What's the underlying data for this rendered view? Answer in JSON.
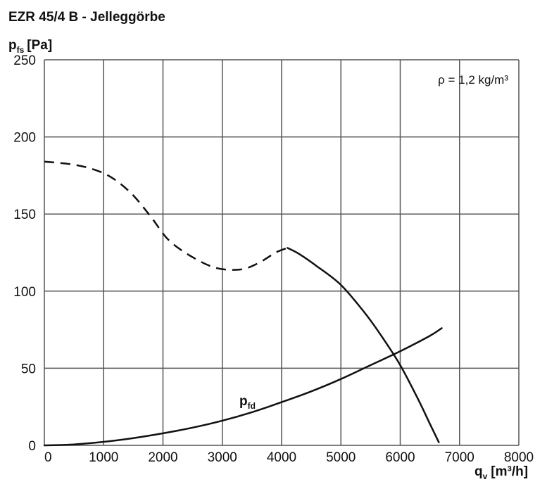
{
  "header": {
    "title": "EZR 45/4 B - Jelleggörbe"
  },
  "chart_data": {
    "type": "line",
    "title": "EZR 45/4 B - Jelleggörbe",
    "ylabel": {
      "main": "p",
      "sub": "fs",
      "unit": "[Pa]"
    },
    "xlabel": {
      "main": "q",
      "sub": "v",
      "unit": "[m³/h]"
    },
    "xlim": [
      0,
      8000
    ],
    "ylim": [
      0,
      250
    ],
    "x_ticks": [
      0,
      1000,
      2000,
      3000,
      4000,
      5000,
      6000,
      7000,
      8000
    ],
    "y_ticks": [
      0,
      50,
      100,
      150,
      200,
      250
    ],
    "grid": true,
    "annotation": "ρ = 1,2 kg/m³",
    "series": [
      {
        "style": "dashed",
        "x": [
          0,
          500,
          900,
          1200,
          1500,
          1800,
          2100,
          2500,
          2900,
          3300,
          3600,
          3900,
          4100
        ],
        "y": [
          184,
          182,
          178,
          172,
          162,
          148,
          133,
          122,
          115,
          114,
          118,
          125,
          128
        ]
      },
      {
        "style": "solid",
        "x": [
          4100,
          4300,
          4600,
          5000,
          5400,
          5700,
          6000,
          6300,
          6500,
          6650
        ],
        "y": [
          128,
          124,
          116,
          104,
          86,
          70,
          52,
          30,
          14,
          2
        ]
      },
      {
        "name": {
          "main": "p",
          "sub": "fd"
        },
        "style": "solid",
        "x": [
          0,
          500,
          1000,
          1500,
          2000,
          2500,
          3000,
          3500,
          4000,
          4500,
          5000,
          5500,
          6000,
          6500,
          6700
        ],
        "y": [
          0,
          0.6,
          2.3,
          4.7,
          7.8,
          11.5,
          16,
          21.5,
          28,
          35,
          43,
          52,
          61,
          71,
          76
        ]
      }
    ]
  }
}
